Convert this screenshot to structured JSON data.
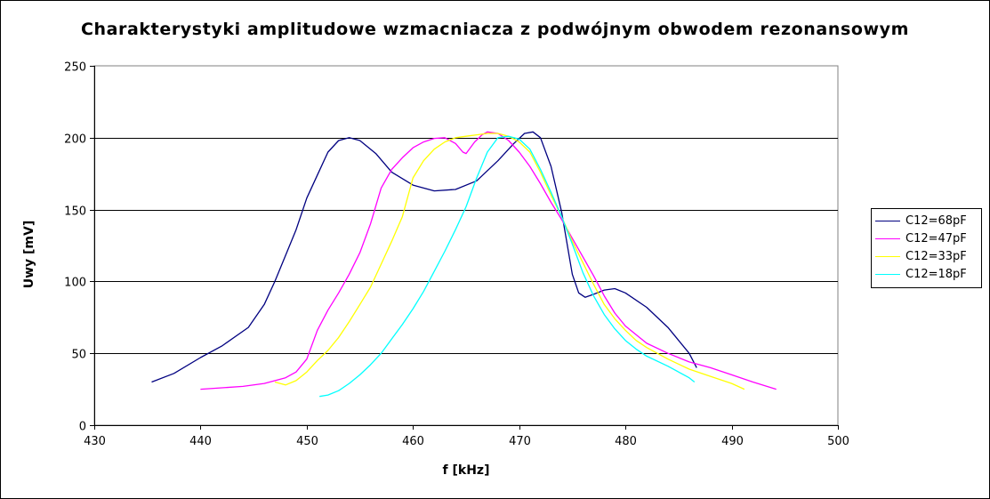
{
  "chart_data": {
    "type": "line",
    "title": "Charakterystyki amplitudowe wzmacniacza z podwójnym obwodem rezonansowym",
    "xlabel": "f [kHz]",
    "ylabel": "Uwy [mV]",
    "xlim": [
      430,
      500
    ],
    "ylim": [
      0,
      250
    ],
    "xticks": [
      430,
      440,
      450,
      460,
      470,
      480,
      490,
      500
    ],
    "yticks": [
      0,
      50,
      100,
      150,
      200,
      250
    ],
    "grid": "horizontal",
    "legend_position": "right",
    "series": [
      {
        "name": "C12=68pF",
        "color": "#000080",
        "points": [
          [
            435.4,
            30
          ],
          [
            437.5,
            36
          ],
          [
            440,
            47
          ],
          [
            442,
            55
          ],
          [
            444.5,
            68
          ],
          [
            446,
            84
          ],
          [
            447,
            100
          ],
          [
            448,
            118
          ],
          [
            449,
            136
          ],
          [
            450,
            158
          ],
          [
            451,
            174
          ],
          [
            452,
            190
          ],
          [
            453,
            198
          ],
          [
            454,
            200
          ],
          [
            455,
            198
          ],
          [
            456.5,
            189
          ],
          [
            458,
            176
          ],
          [
            460,
            167
          ],
          [
            462,
            163
          ],
          [
            464,
            164
          ],
          [
            466,
            170
          ],
          [
            468,
            184
          ],
          [
            469.5,
            196
          ],
          [
            470.5,
            203
          ],
          [
            471.3,
            204
          ],
          [
            472,
            200
          ],
          [
            473,
            180
          ],
          [
            474,
            148
          ],
          [
            475,
            105
          ],
          [
            475.6,
            92
          ],
          [
            476.2,
            89
          ],
          [
            477,
            91
          ],
          [
            478,
            94
          ],
          [
            479,
            95
          ],
          [
            480,
            92
          ],
          [
            482,
            82
          ],
          [
            484,
            68
          ],
          [
            486,
            50
          ],
          [
            486.7,
            40
          ]
        ]
      },
      {
        "name": "C12=47pF",
        "color": "#FF00FF",
        "points": [
          [
            440,
            25
          ],
          [
            442,
            26
          ],
          [
            444,
            27
          ],
          [
            446,
            29
          ],
          [
            448,
            33
          ],
          [
            449,
            37
          ],
          [
            450,
            46
          ],
          [
            451,
            66
          ],
          [
            452,
            80
          ],
          [
            453,
            92
          ],
          [
            454,
            105
          ],
          [
            455,
            120
          ],
          [
            456,
            140
          ],
          [
            457,
            165
          ],
          [
            458,
            178
          ],
          [
            459,
            186
          ],
          [
            460,
            193
          ],
          [
            461,
            197
          ],
          [
            462,
            199.5
          ],
          [
            463,
            200
          ],
          [
            464,
            196
          ],
          [
            464.7,
            190
          ],
          [
            465,
            189
          ],
          [
            465.8,
            197
          ],
          [
            466.5,
            202
          ],
          [
            467,
            204
          ],
          [
            468,
            203
          ],
          [
            469,
            198
          ],
          [
            470,
            190
          ],
          [
            471,
            180
          ],
          [
            472,
            168
          ],
          [
            473,
            155
          ],
          [
            474,
            143
          ],
          [
            475,
            130
          ],
          [
            476,
            117
          ],
          [
            477,
            104
          ],
          [
            478,
            90
          ],
          [
            479,
            78
          ],
          [
            480,
            69
          ],
          [
            481,
            63
          ],
          [
            482,
            57
          ],
          [
            484,
            50
          ],
          [
            486,
            44
          ],
          [
            488,
            40
          ],
          [
            490,
            35
          ],
          [
            492,
            30
          ],
          [
            494.2,
            25
          ]
        ]
      },
      {
        "name": "C12=33pF",
        "color": "#FFFF00",
        "points": [
          [
            447,
            30
          ],
          [
            448,
            28
          ],
          [
            449,
            31
          ],
          [
            450,
            37
          ],
          [
            451,
            45
          ],
          [
            452,
            52
          ],
          [
            453,
            61
          ],
          [
            454,
            72
          ],
          [
            455,
            84
          ],
          [
            456,
            96
          ],
          [
            457,
            112
          ],
          [
            458,
            128
          ],
          [
            459,
            145
          ],
          [
            460,
            172
          ],
          [
            461,
            184
          ],
          [
            462,
            192
          ],
          [
            463,
            197
          ],
          [
            464,
            200
          ],
          [
            465,
            201
          ],
          [
            466,
            202
          ],
          [
            467,
            203
          ],
          [
            468,
            203
          ],
          [
            469,
            201
          ],
          [
            470,
            197
          ],
          [
            471,
            190
          ],
          [
            472,
            176
          ],
          [
            473,
            160
          ],
          [
            474,
            145
          ],
          [
            475,
            128
          ],
          [
            476,
            113
          ],
          [
            477,
            98
          ],
          [
            478,
            84
          ],
          [
            479,
            74
          ],
          [
            480,
            66
          ],
          [
            481,
            59
          ],
          [
            482,
            54
          ],
          [
            484,
            46
          ],
          [
            486,
            39
          ],
          [
            488,
            34
          ],
          [
            490,
            29
          ],
          [
            491.2,
            25
          ]
        ]
      },
      {
        "name": "C12=18pF",
        "color": "#00FFFF",
        "points": [
          [
            451.2,
            20
          ],
          [
            452,
            21
          ],
          [
            453,
            24
          ],
          [
            454,
            29
          ],
          [
            455,
            35
          ],
          [
            456,
            42
          ],
          [
            457,
            50
          ],
          [
            458,
            60
          ],
          [
            459,
            70
          ],
          [
            460,
            81
          ],
          [
            461,
            93
          ],
          [
            462,
            107
          ],
          [
            463,
            121
          ],
          [
            464,
            136
          ],
          [
            465,
            152
          ],
          [
            466,
            172
          ],
          [
            467,
            190
          ],
          [
            468,
            200
          ],
          [
            469,
            201
          ],
          [
            470,
            199
          ],
          [
            471,
            192
          ],
          [
            472,
            178
          ],
          [
            473,
            162
          ],
          [
            474,
            145
          ],
          [
            475,
            126
          ],
          [
            476,
            106
          ],
          [
            477,
            90
          ],
          [
            478,
            77
          ],
          [
            479,
            67
          ],
          [
            480,
            59
          ],
          [
            481,
            53
          ],
          [
            482,
            48
          ],
          [
            484,
            41
          ],
          [
            486,
            33
          ],
          [
            486.5,
            30
          ]
        ]
      }
    ]
  }
}
